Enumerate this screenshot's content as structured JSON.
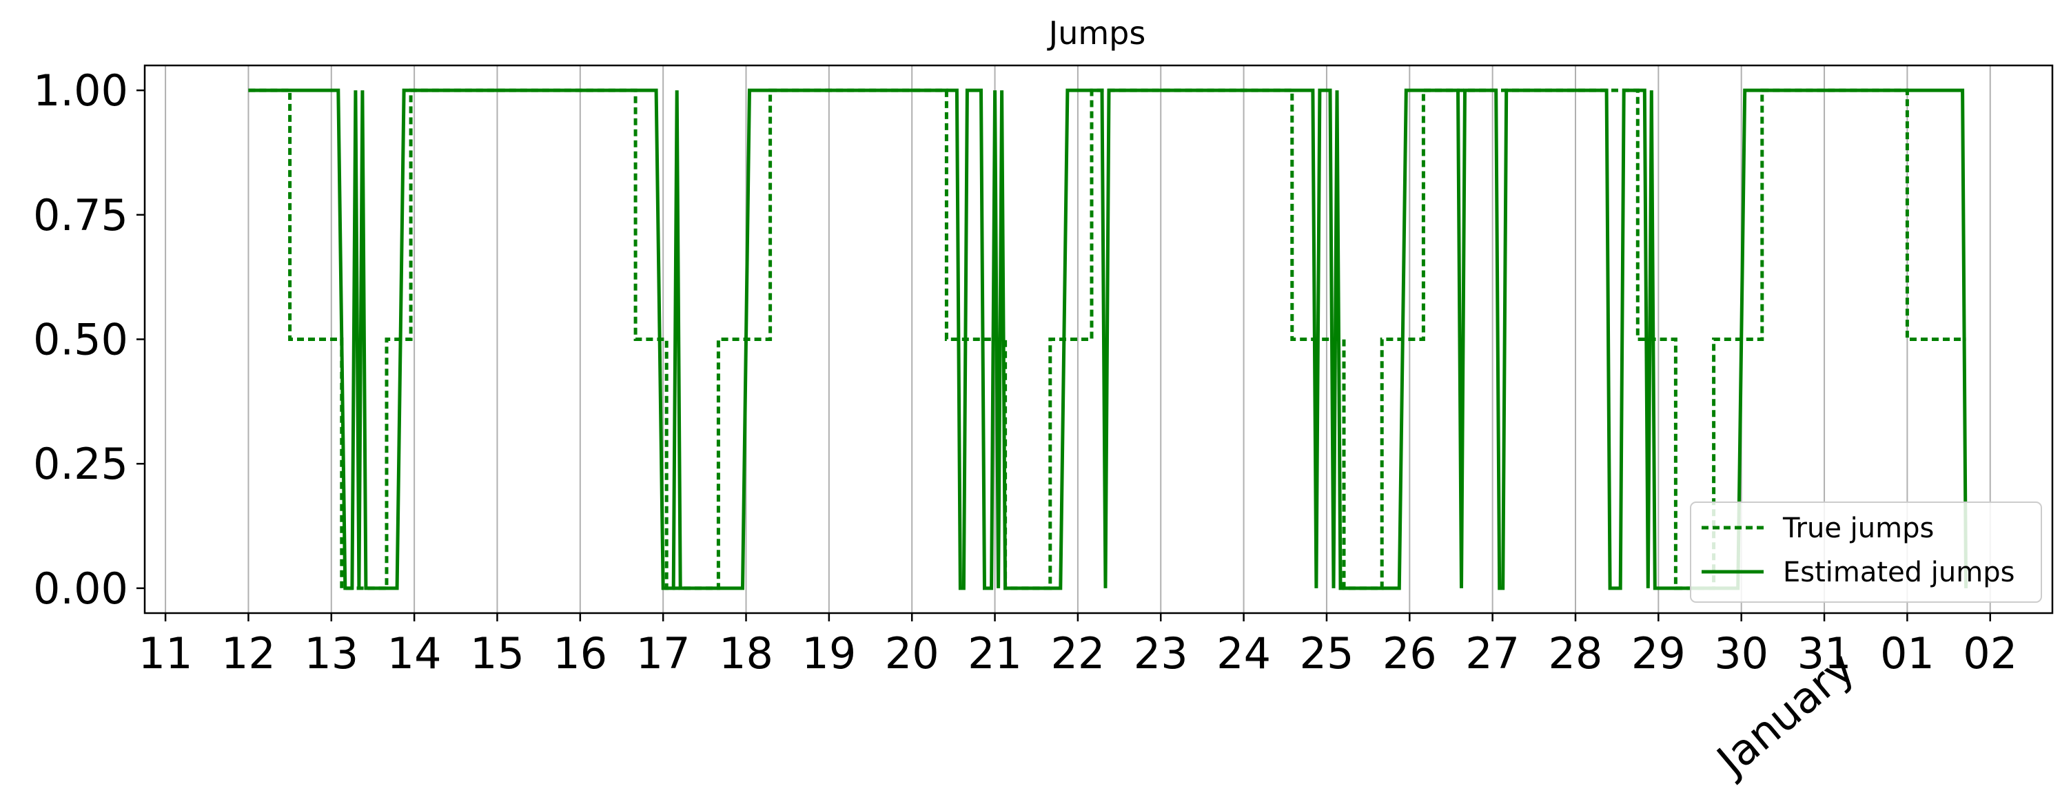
{
  "chart_data": {
    "type": "line",
    "title": "Jumps",
    "xlabel": "",
    "ylabel": "",
    "xlim": [
      "2022-12-10T18:00",
      "2023-01-02T18:00"
    ],
    "ylim": [
      -0.05,
      1.05
    ],
    "y_ticks": [
      0.0,
      0.25,
      0.5,
      0.75,
      1.0
    ],
    "y_tick_labels": [
      "0.00",
      "0.25",
      "0.50",
      "0.75",
      "1.00"
    ],
    "x_ticks": [
      "2022-12-11",
      "2022-12-12",
      "2022-12-13",
      "2022-12-14",
      "2022-12-15",
      "2022-12-16",
      "2022-12-17",
      "2022-12-18",
      "2022-12-19",
      "2022-12-20",
      "2022-12-21",
      "2022-12-22",
      "2022-12-23",
      "2022-12-24",
      "2022-12-25",
      "2022-12-26",
      "2022-12-27",
      "2022-12-28",
      "2022-12-29",
      "2022-12-30",
      "2022-12-31",
      "2023-01-01",
      "2023-01-02"
    ],
    "x_tick_labels": [
      "11",
      "12",
      "13",
      "14",
      "15",
      "16",
      "17",
      "18",
      "19",
      "20",
      "21",
      "22",
      "23",
      "24",
      "25",
      "26",
      "27",
      "28",
      "29",
      "30",
      "31",
      "01",
      "02"
    ],
    "x_month_label": "January",
    "grid": "vertical",
    "legend_position": "lower-right",
    "color": "#008000",
    "series": [
      {
        "name": "True jumps",
        "style": "dotted",
        "points": [
          [
            "2022-12-12T00:00",
            1.0
          ],
          [
            "2022-12-12T12:00",
            1.0
          ],
          [
            "2022-12-12T12:00",
            0.5
          ],
          [
            "2022-12-13T03:00",
            0.5
          ],
          [
            "2022-12-13T03:00",
            0.0
          ],
          [
            "2022-12-13T16:00",
            0.0
          ],
          [
            "2022-12-13T16:00",
            0.5
          ],
          [
            "2022-12-13T23:00",
            0.5
          ],
          [
            "2022-12-13T23:00",
            1.0
          ],
          [
            "2022-12-16T16:00",
            1.0
          ],
          [
            "2022-12-16T16:00",
            0.5
          ],
          [
            "2022-12-17T01:00",
            0.5
          ],
          [
            "2022-12-17T01:00",
            0.0
          ],
          [
            "2022-12-17T16:00",
            0.0
          ],
          [
            "2022-12-17T16:00",
            0.5
          ],
          [
            "2022-12-18T07:00",
            0.5
          ],
          [
            "2022-12-18T07:00",
            1.0
          ],
          [
            "2022-12-20T10:00",
            1.0
          ],
          [
            "2022-12-20T10:00",
            0.5
          ],
          [
            "2022-12-21T03:00",
            0.5
          ],
          [
            "2022-12-21T03:00",
            0.0
          ],
          [
            "2022-12-21T16:00",
            0.0
          ],
          [
            "2022-12-21T16:00",
            0.5
          ],
          [
            "2022-12-22T04:00",
            0.5
          ],
          [
            "2022-12-22T04:00",
            1.0
          ],
          [
            "2022-12-24T14:00",
            1.0
          ],
          [
            "2022-12-24T14:00",
            0.5
          ],
          [
            "2022-12-25T05:00",
            0.5
          ],
          [
            "2022-12-25T05:00",
            0.0
          ],
          [
            "2022-12-25T16:00",
            0.0
          ],
          [
            "2022-12-25T16:00",
            0.5
          ],
          [
            "2022-12-26T04:00",
            0.5
          ],
          [
            "2022-12-26T04:00",
            1.0
          ],
          [
            "2022-12-28T18:00",
            1.0
          ],
          [
            "2022-12-28T18:00",
            0.5
          ],
          [
            "2022-12-29T05:00",
            0.5
          ],
          [
            "2022-12-29T05:00",
            0.0
          ],
          [
            "2022-12-29T16:00",
            0.0
          ],
          [
            "2022-12-29T16:00",
            0.5
          ],
          [
            "2022-12-30T06:00",
            0.5
          ],
          [
            "2022-12-30T06:00",
            1.0
          ],
          [
            "2023-01-01T00:00",
            1.0
          ],
          [
            "2023-01-01T00:00",
            0.5
          ],
          [
            "2023-01-01T17:00",
            0.5
          ]
        ]
      },
      {
        "name": "Estimated jumps",
        "style": "solid",
        "points": [
          [
            "2022-12-12T00:00",
            1.0
          ],
          [
            "2022-12-13T02:00",
            1.0
          ],
          [
            "2022-12-13T04:00",
            0.0
          ],
          [
            "2022-12-13T06:00",
            0.0
          ],
          [
            "2022-12-13T07:00",
            1.0
          ],
          [
            "2022-12-13T08:00",
            0.0
          ],
          [
            "2022-12-13T09:00",
            1.0
          ],
          [
            "2022-12-13T10:00",
            0.0
          ],
          [
            "2022-12-13T19:00",
            0.0
          ],
          [
            "2022-12-13T21:00",
            1.0
          ],
          [
            "2022-12-16T22:00",
            1.0
          ],
          [
            "2022-12-17T00:00",
            0.0
          ],
          [
            "2022-12-17T03:00",
            0.0
          ],
          [
            "2022-12-17T04:00",
            1.0
          ],
          [
            "2022-12-17T05:00",
            0.0
          ],
          [
            "2022-12-17T23:00",
            0.0
          ],
          [
            "2022-12-18T01:00",
            1.0
          ],
          [
            "2022-12-20T13:00",
            1.0
          ],
          [
            "2022-12-20T14:00",
            0.0
          ],
          [
            "2022-12-20T15:00",
            0.0
          ],
          [
            "2022-12-20T16:00",
            1.0
          ],
          [
            "2022-12-20T20:00",
            1.0
          ],
          [
            "2022-12-20T21:00",
            0.0
          ],
          [
            "2022-12-20T23:00",
            0.0
          ],
          [
            "2022-12-21T00:00",
            1.0
          ],
          [
            "2022-12-21T01:00",
            0.0
          ],
          [
            "2022-12-21T02:00",
            1.0
          ],
          [
            "2022-12-21T03:00",
            0.0
          ],
          [
            "2022-12-21T19:00",
            0.0
          ],
          [
            "2022-12-21T21:00",
            1.0
          ],
          [
            "2022-12-22T07:00",
            1.0
          ],
          [
            "2022-12-22T08:00",
            0.0
          ],
          [
            "2022-12-22T09:00",
            1.0
          ],
          [
            "2022-12-24T20:00",
            1.0
          ],
          [
            "2022-12-24T21:00",
            0.0
          ],
          [
            "2022-12-24T22:00",
            1.0
          ],
          [
            "2022-12-25T01:00",
            1.0
          ],
          [
            "2022-12-25T02:00",
            0.0
          ],
          [
            "2022-12-25T03:00",
            1.0
          ],
          [
            "2022-12-25T04:00",
            0.0
          ],
          [
            "2022-12-25T21:00",
            0.0
          ],
          [
            "2022-12-25T23:00",
            1.0
          ],
          [
            "2022-12-26T14:00",
            1.0
          ],
          [
            "2022-12-26T15:00",
            0.0
          ],
          [
            "2022-12-26T16:00",
            1.0
          ],
          [
            "2022-12-27T01:00",
            1.0
          ],
          [
            "2022-12-27T02:00",
            0.0
          ],
          [
            "2022-12-27T03:00",
            0.0
          ],
          [
            "2022-12-27T04:00",
            1.0
          ],
          [
            "2022-12-28T09:00",
            1.0
          ],
          [
            "2022-12-28T10:00",
            0.0
          ],
          [
            "2022-12-28T13:00",
            0.0
          ],
          [
            "2022-12-28T14:00",
            1.0
          ],
          [
            "2022-12-28T20:00",
            1.0
          ],
          [
            "2022-12-28T21:00",
            0.0
          ],
          [
            "2022-12-28T22:00",
            1.0
          ],
          [
            "2022-12-28T23:00",
            0.0
          ],
          [
            "2022-12-29T23:00",
            0.0
          ],
          [
            "2022-12-30T01:00",
            1.0
          ],
          [
            "2023-01-01T16:00",
            1.0
          ],
          [
            "2023-01-01T17:00",
            0.0
          ]
        ]
      }
    ]
  }
}
